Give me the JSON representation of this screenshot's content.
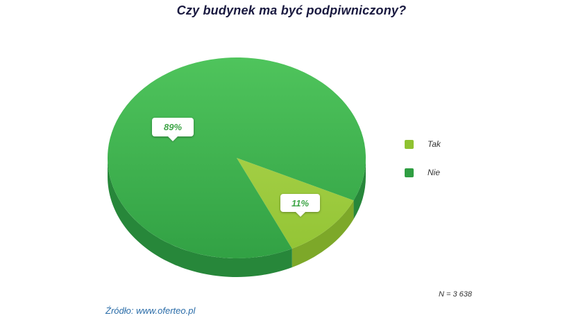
{
  "chart_data": {
    "type": "pie",
    "title": "Czy budynek ma być podpiwniczony?",
    "slices": [
      {
        "label": "Tak",
        "value": 11,
        "pct_label": "11%",
        "color": "#8fc231",
        "color_light": "#b3d854",
        "color_dark": "#7da829"
      },
      {
        "label": "Nie",
        "value": 89,
        "pct_label": "89%",
        "color": "#2f9e42",
        "color_light": "#4fc45c",
        "color_dark": "#27873a"
      }
    ],
    "legend_position": "right",
    "sample_note": "N = 3 638"
  },
  "footer": {
    "source": "Źródło: www.oferteo.pl"
  },
  "colors": {
    "title": "#1a1a40",
    "label_text": "#3fa548",
    "source": "#2a6ca8"
  }
}
